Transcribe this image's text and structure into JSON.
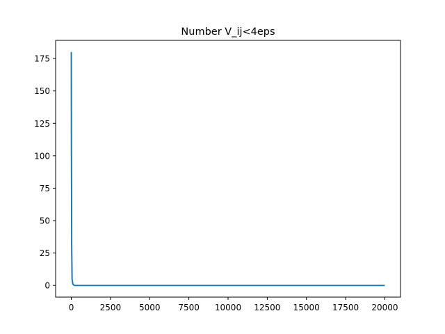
{
  "chart_data": {
    "type": "line",
    "title": "Number V_ij<4eps",
    "xlabel": "",
    "ylabel": "",
    "xlim": [
      -1000,
      21000
    ],
    "ylim": [
      -9,
      189
    ],
    "xticks": [
      0,
      2500,
      5000,
      7500,
      10000,
      12500,
      15000,
      17500,
      20000
    ],
    "xtick_labels": [
      "0",
      "2500",
      "5000",
      "7500",
      "10000",
      "12500",
      "15000",
      "17500",
      "20000"
    ],
    "yticks": [
      0,
      25,
      50,
      75,
      100,
      125,
      150,
      175
    ],
    "ytick_labels": [
      "0",
      "25",
      "50",
      "75",
      "100",
      "125",
      "150",
      "175"
    ],
    "grid": false,
    "legend": "none",
    "series": [
      {
        "color": "#1f77b4",
        "x": [
          0,
          10,
          25,
          50,
          100,
          200,
          500,
          1000,
          5000,
          10000,
          15000,
          20000
        ],
        "y": [
          180,
          100,
          30,
          5,
          1,
          0,
          0,
          0,
          0,
          0,
          0,
          0
        ]
      }
    ]
  }
}
